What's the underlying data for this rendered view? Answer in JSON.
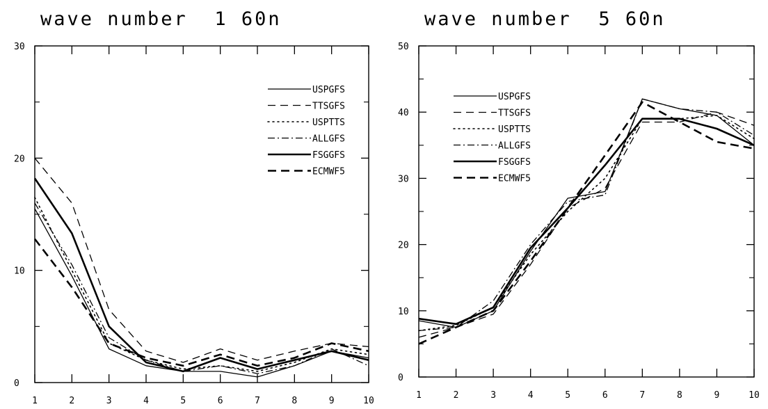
{
  "chart_data": [
    {
      "type": "line",
      "title": "wave number  1 60n",
      "xlabel": "",
      "ylabel": "",
      "x": [
        1,
        2,
        3,
        4,
        5,
        6,
        7,
        8,
        9,
        10
      ],
      "xticks": [
        "1",
        "2",
        "3",
        "4",
        "5",
        "6",
        "7",
        "8",
        "9",
        "10"
      ],
      "yticks": [
        "0",
        "10",
        "20",
        "30"
      ],
      "xlim": [
        1,
        10
      ],
      "ylim": [
        0,
        30
      ],
      "grid": false,
      "legend": "top-right",
      "series": [
        {
          "name": "USPGFS",
          "style": "solid-thin",
          "values": [
            15.5,
            9.5,
            3.0,
            1.5,
            1.0,
            1.0,
            0.5,
            1.5,
            2.8,
            2.2
          ]
        },
        {
          "name": "TTSGFS",
          "style": "dashed-thin",
          "values": [
            20.0,
            16.0,
            6.5,
            2.8,
            1.8,
            3.0,
            2.0,
            2.8,
            3.5,
            3.2
          ]
        },
        {
          "name": "USPTTS",
          "style": "dotted",
          "values": [
            16.5,
            10.0,
            3.5,
            2.0,
            1.2,
            1.5,
            1.0,
            1.8,
            3.0,
            2.5
          ]
        },
        {
          "name": "ALLGFS",
          "style": "dashdot",
          "values": [
            16.0,
            10.5,
            4.0,
            2.0,
            1.0,
            1.5,
            0.8,
            1.5,
            3.0,
            1.5
          ]
        },
        {
          "name": "FSGGFS",
          "style": "solid-thick",
          "values": [
            18.2,
            13.3,
            5.0,
            1.8,
            1.0,
            2.2,
            1.2,
            2.0,
            2.8,
            2.0
          ]
        },
        {
          "name": "ECMWF5",
          "style": "dashed-thick",
          "values": [
            12.8,
            8.5,
            3.5,
            2.2,
            1.5,
            2.5,
            1.5,
            2.2,
            3.5,
            2.8
          ]
        }
      ]
    },
    {
      "type": "line",
      "title": "wave number  5 60n",
      "xlabel": "",
      "ylabel": "",
      "x": [
        1,
        2,
        3,
        4,
        5,
        6,
        7,
        8,
        9,
        10
      ],
      "xticks": [
        "1",
        "2",
        "3",
        "4",
        "5",
        "6",
        "7",
        "8",
        "9",
        "10"
      ],
      "yticks": [
        "0",
        "10",
        "20",
        "30",
        "40",
        "50"
      ],
      "xlim": [
        1,
        10
      ],
      "ylim": [
        0,
        50
      ],
      "grid": false,
      "legend": "top-left",
      "series": [
        {
          "name": "USPGFS",
          "style": "solid-thin",
          "values": [
            8.5,
            7.5,
            10.0,
            19.0,
            27.0,
            28.0,
            42.0,
            40.5,
            39.5,
            35.0
          ]
        },
        {
          "name": "TTSGFS",
          "style": "dashed-thin",
          "values": [
            6.0,
            7.5,
            9.5,
            17.0,
            25.5,
            28.5,
            38.5,
            38.5,
            40.0,
            38.0
          ]
        },
        {
          "name": "USPTTS",
          "style": "dotted",
          "values": [
            7.0,
            7.8,
            10.5,
            18.5,
            25.0,
            30.0,
            39.0,
            39.0,
            39.5,
            36.0
          ]
        },
        {
          "name": "ALLGFS",
          "style": "dashdot",
          "values": [
            7.0,
            7.5,
            11.5,
            20.0,
            26.5,
            27.5,
            42.0,
            40.5,
            40.0,
            36.5
          ]
        },
        {
          "name": "FSGGFS",
          "style": "solid-thick",
          "values": [
            8.8,
            8.0,
            10.5,
            19.5,
            25.5,
            32.0,
            39.0,
            39.0,
            37.5,
            35.0
          ]
        },
        {
          "name": "ECMWF5",
          "style": "dashed-thick",
          "values": [
            5.0,
            7.5,
            10.0,
            17.5,
            25.5,
            33.5,
            41.5,
            38.5,
            35.5,
            34.5
          ]
        }
      ]
    }
  ]
}
